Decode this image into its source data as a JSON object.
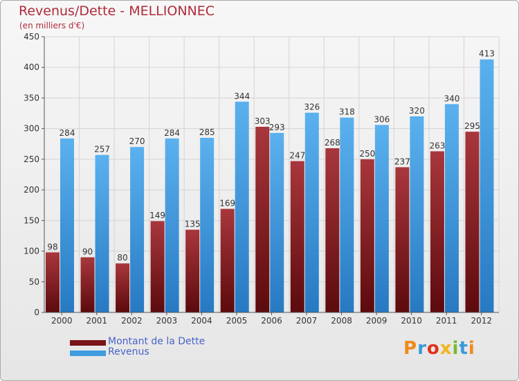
{
  "title": "Revenus/Dette - MELLIONNEC",
  "subtitle": "(en milliers d'€)",
  "logo_text": "Proxiti",
  "colors": {
    "dette": "#7a1419",
    "revenus": "#3f9ce0",
    "title": "#b02a3a",
    "legend_text": "#4a63c8"
  },
  "chart_data": {
    "type": "bar",
    "title": "Revenus/Dette - MELLIONNEC",
    "ylabel": "(en milliers d'€)",
    "xlabel": "",
    "categories": [
      "2000",
      "2001",
      "2002",
      "2003",
      "2004",
      "2005",
      "2006",
      "2007",
      "2008",
      "2009",
      "2010",
      "2011",
      "2012"
    ],
    "ylim": [
      0,
      450
    ],
    "yticks": [
      0,
      50,
      100,
      150,
      200,
      250,
      300,
      350,
      400,
      450
    ],
    "grid": true,
    "legend": "bottom-left",
    "series": [
      {
        "name": "Montant de la Dette",
        "values": [
          98,
          90,
          80,
          149,
          135,
          169,
          303,
          247,
          268,
          250,
          237,
          263,
          295
        ]
      },
      {
        "name": "Revenus",
        "values": [
          284,
          257,
          270,
          284,
          285,
          344,
          293,
          326,
          318,
          306,
          320,
          340,
          413
        ]
      }
    ]
  }
}
